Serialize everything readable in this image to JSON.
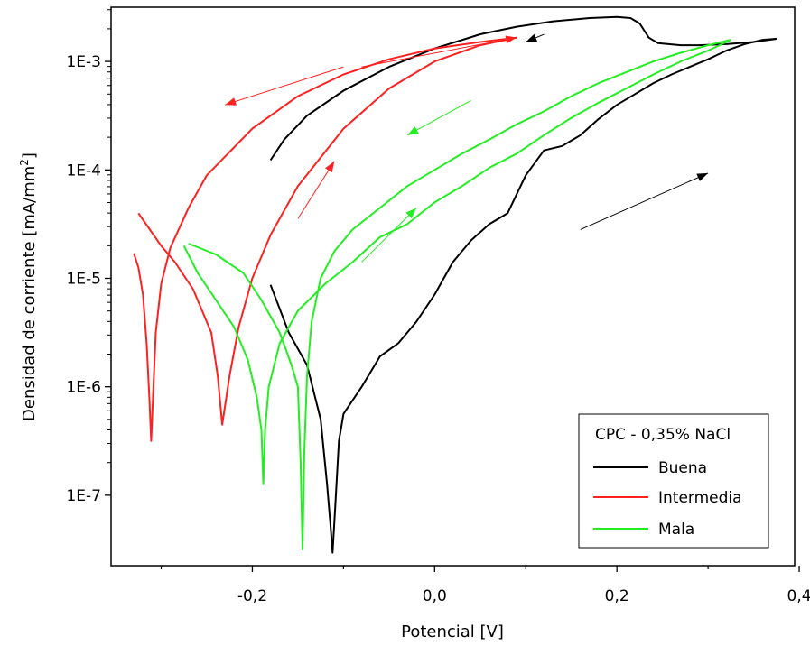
{
  "chart_data": {
    "type": "line",
    "title": "",
    "xlabel": "Potencial [V]",
    "ylabel_main": "Densidad de corriente [mA/mm",
    "ylabel_sup": "2",
    "ylabel_close": "]",
    "xlim": [
      -0.355,
      0.395
    ],
    "ylim_log10": [
      -7.65,
      -2.5
    ],
    "yscale": "log",
    "x_ticks": [
      {
        "value": -0.2,
        "label": "-0,2"
      },
      {
        "value": 0.0,
        "label": "0,0"
      },
      {
        "value": 0.2,
        "label": "0,2"
      },
      {
        "value": 0.4,
        "label": "0,4"
      }
    ],
    "x_minor_ticks": [
      -0.3,
      -0.1,
      0.1,
      0.3
    ],
    "y_ticks": [
      {
        "exp": -7,
        "label": "1E-7"
      },
      {
        "exp": -6,
        "label": "1E-6"
      },
      {
        "exp": -5,
        "label": "1E-5"
      },
      {
        "exp": -4,
        "label": "1E-4"
      },
      {
        "exp": -3,
        "label": "1E-3"
      }
    ],
    "grid": false,
    "legend": {
      "title": "CPC - 0,35% NaCl",
      "position": "bottom-right"
    },
    "series": [
      {
        "name": "Buena",
        "color": "#000000",
        "forward": [
          [
            -0.18,
            -5.06
          ],
          [
            -0.16,
            -5.5
          ],
          [
            -0.14,
            -5.8
          ],
          [
            -0.125,
            -6.3
          ],
          [
            -0.118,
            -6.9
          ],
          [
            -0.114,
            -7.3
          ],
          [
            -0.112,
            -7.53
          ],
          [
            -0.109,
            -7.1
          ],
          [
            -0.105,
            -6.5
          ],
          [
            -0.1,
            -6.25
          ],
          [
            -0.08,
            -6.0
          ],
          [
            -0.06,
            -5.72
          ],
          [
            -0.04,
            -5.6
          ],
          [
            -0.02,
            -5.4
          ],
          [
            0.0,
            -5.15
          ],
          [
            0.02,
            -4.85
          ],
          [
            0.04,
            -4.65
          ],
          [
            0.06,
            -4.5
          ],
          [
            0.08,
            -4.4
          ],
          [
            0.1,
            -4.05
          ],
          [
            0.12,
            -3.82
          ],
          [
            0.14,
            -3.78
          ],
          [
            0.16,
            -3.68
          ],
          [
            0.18,
            -3.53
          ],
          [
            0.2,
            -3.4
          ],
          [
            0.22,
            -3.3
          ],
          [
            0.24,
            -3.2
          ],
          [
            0.26,
            -3.12
          ],
          [
            0.28,
            -3.05
          ],
          [
            0.3,
            -2.98
          ],
          [
            0.32,
            -2.9
          ],
          [
            0.34,
            -2.84
          ],
          [
            0.36,
            -2.8
          ],
          [
            0.376,
            -2.79
          ]
        ],
        "reverse": [
          [
            0.376,
            -2.79
          ],
          [
            0.35,
            -2.82
          ],
          [
            0.32,
            -2.84
          ],
          [
            0.29,
            -2.85
          ],
          [
            0.27,
            -2.85
          ],
          [
            0.245,
            -2.83
          ],
          [
            0.235,
            -2.78
          ],
          [
            0.225,
            -2.65
          ],
          [
            0.215,
            -2.6
          ],
          [
            0.2,
            -2.59
          ],
          [
            0.17,
            -2.6
          ],
          [
            0.13,
            -2.63
          ],
          [
            0.09,
            -2.68
          ],
          [
            0.05,
            -2.75
          ],
          [
            0.0,
            -2.88
          ],
          [
            -0.05,
            -3.05
          ],
          [
            -0.1,
            -3.27
          ],
          [
            -0.14,
            -3.5
          ],
          [
            -0.165,
            -3.72
          ],
          [
            -0.18,
            -3.91
          ]
        ]
      },
      {
        "name": "Intermedia",
        "color": "#ff2020",
        "forward": [
          [
            -0.33,
            -4.77
          ],
          [
            -0.325,
            -4.9
          ],
          [
            -0.32,
            -5.15
          ],
          [
            -0.316,
            -5.6
          ],
          [
            -0.313,
            -6.1
          ],
          [
            -0.311,
            -6.5
          ],
          [
            -0.309,
            -6.1
          ],
          [
            -0.306,
            -5.5
          ],
          [
            -0.3,
            -5.05
          ],
          [
            -0.29,
            -4.72
          ],
          [
            -0.27,
            -4.35
          ],
          [
            -0.25,
            -4.05
          ],
          [
            -0.2,
            -3.62
          ],
          [
            -0.15,
            -3.32
          ],
          [
            -0.1,
            -3.12
          ],
          [
            -0.05,
            -2.98
          ],
          [
            0.0,
            -2.88
          ],
          [
            0.05,
            -2.82
          ],
          [
            0.09,
            -2.78
          ]
        ],
        "reverse": [
          [
            0.09,
            -2.78
          ],
          [
            0.05,
            -2.85
          ],
          [
            0.0,
            -3.0
          ],
          [
            -0.05,
            -3.25
          ],
          [
            -0.1,
            -3.62
          ],
          [
            -0.15,
            -4.15
          ],
          [
            -0.18,
            -4.6
          ],
          [
            -0.2,
            -5.0
          ],
          [
            -0.215,
            -5.45
          ],
          [
            -0.225,
            -5.9
          ],
          [
            -0.233,
            -6.35
          ],
          [
            -0.238,
            -5.9
          ],
          [
            -0.245,
            -5.5
          ],
          [
            -0.265,
            -5.1
          ],
          [
            -0.285,
            -4.85
          ],
          [
            -0.3,
            -4.7
          ],
          [
            -0.325,
            -4.4
          ]
        ]
      },
      {
        "name": "Mala",
        "color": "#22ee22",
        "forward": [
          [
            -0.275,
            -4.7
          ],
          [
            -0.26,
            -4.95
          ],
          [
            -0.24,
            -5.2
          ],
          [
            -0.22,
            -5.45
          ],
          [
            -0.205,
            -5.75
          ],
          [
            -0.195,
            -6.1
          ],
          [
            -0.19,
            -6.4
          ],
          [
            -0.188,
            -6.9
          ],
          [
            -0.186,
            -6.4
          ],
          [
            -0.182,
            -6.0
          ],
          [
            -0.17,
            -5.6
          ],
          [
            -0.15,
            -5.3
          ],
          [
            -0.12,
            -5.05
          ],
          [
            -0.09,
            -4.85
          ],
          [
            -0.06,
            -4.62
          ],
          [
            -0.03,
            -4.5
          ],
          [
            0.0,
            -4.3
          ],
          [
            0.03,
            -4.15
          ],
          [
            0.06,
            -3.98
          ],
          [
            0.09,
            -3.85
          ],
          [
            0.12,
            -3.68
          ],
          [
            0.15,
            -3.52
          ],
          [
            0.18,
            -3.38
          ],
          [
            0.21,
            -3.25
          ],
          [
            0.24,
            -3.12
          ],
          [
            0.27,
            -3.0
          ],
          [
            0.3,
            -2.9
          ],
          [
            0.325,
            -2.8
          ]
        ],
        "reverse": [
          [
            0.325,
            -2.8
          ],
          [
            0.3,
            -2.85
          ],
          [
            0.27,
            -2.92
          ],
          [
            0.24,
            -3.0
          ],
          [
            0.21,
            -3.1
          ],
          [
            0.18,
            -3.2
          ],
          [
            0.15,
            -3.32
          ],
          [
            0.12,
            -3.46
          ],
          [
            0.09,
            -3.58
          ],
          [
            0.06,
            -3.72
          ],
          [
            0.03,
            -3.85
          ],
          [
            0.0,
            -4.0
          ],
          [
            -0.03,
            -4.15
          ],
          [
            -0.06,
            -4.35
          ],
          [
            -0.09,
            -4.55
          ],
          [
            -0.11,
            -4.75
          ],
          [
            -0.125,
            -5.0
          ],
          [
            -0.135,
            -5.4
          ],
          [
            -0.14,
            -5.9
          ],
          [
            -0.143,
            -6.6
          ],
          [
            -0.145,
            -7.5
          ],
          [
            -0.147,
            -6.7
          ],
          [
            -0.15,
            -6.0
          ],
          [
            -0.157,
            -5.8
          ],
          [
            -0.17,
            -5.5
          ],
          [
            -0.19,
            -5.2
          ],
          [
            -0.21,
            -4.95
          ],
          [
            -0.24,
            -4.78
          ],
          [
            -0.27,
            -4.68
          ]
        ]
      }
    ],
    "direction_arrows": [
      {
        "color": "#000000",
        "from": [
          0.16,
          -4.55
        ],
        "to": [
          0.3,
          -4.03
        ]
      },
      {
        "color": "#000000",
        "from": [
          0.12,
          -2.75
        ],
        "to": [
          0.1,
          -2.82
        ]
      },
      {
        "color": "#ff2020",
        "from": [
          -0.1,
          -3.05
        ],
        "to": [
          -0.23,
          -3.4
        ]
      },
      {
        "color": "#ff2020",
        "from": [
          -0.08,
          -3.05
        ],
        "to": [
          0.09,
          -2.78
        ]
      },
      {
        "color": "#ff2020",
        "from": [
          -0.15,
          -4.45
        ],
        "to": [
          -0.11,
          -3.92
        ]
      },
      {
        "color": "#22ee22",
        "from": [
          0.04,
          -3.36
        ],
        "to": [
          -0.03,
          -3.68
        ]
      },
      {
        "color": "#22ee22",
        "from": [
          -0.08,
          -4.85
        ],
        "to": [
          -0.02,
          -4.35
        ]
      }
    ]
  }
}
